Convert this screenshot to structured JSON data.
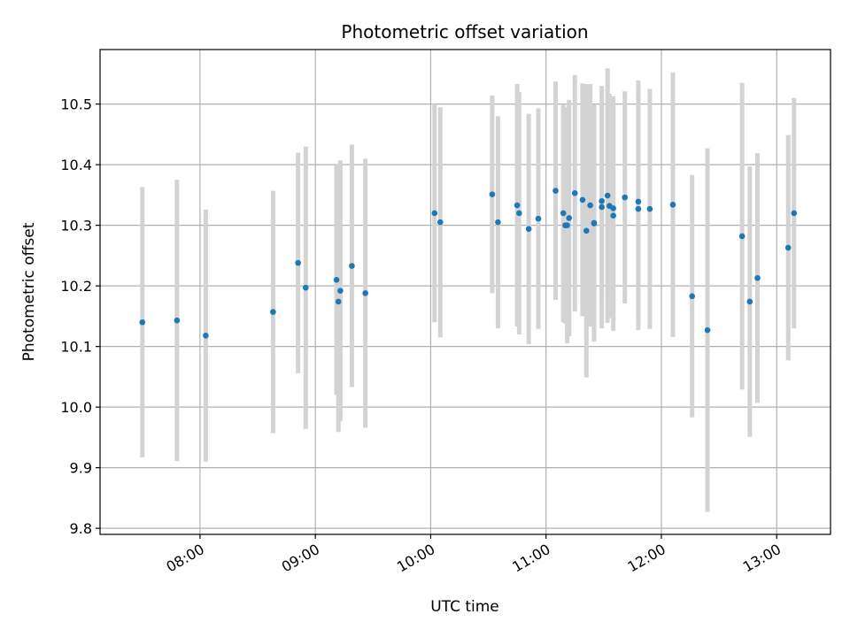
{
  "chart_data": {
    "type": "scatter",
    "title": "Photometric offset variation",
    "xlabel": "UTC time",
    "ylabel": "Photometric offset",
    "x_tick_labels": [
      "08:00",
      "09:00",
      "10:00",
      "11:00",
      "12:00",
      "13:00"
    ],
    "y_tick_labels": [
      "9.8",
      "9.9",
      "10.0",
      "10.1",
      "10.2",
      "10.3",
      "10.4",
      "10.5"
    ],
    "xlim_minutes_utc": [
      428,
      808
    ],
    "ylim": [
      9.79,
      10.59
    ],
    "grid": true,
    "colors": {
      "points": "#1f77b4",
      "errorbars": "#d3d3d3",
      "grid": "#b0b0b0"
    },
    "series": [
      {
        "x": [
          "07:30",
          "07:48",
          "08:03",
          "08:38",
          "08:51",
          "08:55",
          "09:11",
          "09:12",
          "09:13",
          "09:19",
          "09:26",
          "10:02",
          "10:05",
          "10:32",
          "10:35",
          "10:45",
          "10:46",
          "10:51",
          "10:56",
          "11:05",
          "11:09",
          "11:10",
          "11:11",
          "11:12",
          "11:15",
          "11:19",
          "11:21",
          "11:23",
          "11:25",
          "11:25",
          "11:29",
          "11:29",
          "11:32",
          "11:33",
          "11:35",
          "11:35",
          "11:41",
          "11:48",
          "11:48",
          "11:54",
          "12:06",
          "12:16",
          "12:24",
          "12:42",
          "12:46",
          "12:50",
          "13:06",
          "13:09"
        ],
        "y": [
          10.14,
          10.143,
          10.118,
          10.157,
          10.238,
          10.197,
          10.21,
          10.174,
          10.192,
          10.233,
          10.188,
          10.32,
          10.305,
          10.351,
          10.305,
          10.333,
          10.32,
          10.294,
          10.311,
          10.357,
          10.32,
          10.3,
          10.3,
          10.312,
          10.353,
          10.342,
          10.291,
          10.333,
          10.304,
          10.303,
          10.34,
          10.33,
          10.349,
          10.332,
          10.328,
          10.316,
          10.346,
          10.339,
          10.327,
          10.327,
          10.334,
          10.183,
          10.127,
          10.282,
          10.174,
          10.213,
          10.263,
          10.32
        ],
        "error": [
          0.223,
          0.232,
          0.208,
          0.2,
          0.182,
          0.233,
          0.19,
          0.215,
          0.215,
          0.2,
          0.222,
          0.18,
          0.19,
          0.163,
          0.175,
          0.2,
          0.2,
          0.19,
          0.182,
          0.18,
          0.18,
          0.162,
          0.195,
          0.195,
          0.195,
          0.192,
          0.242,
          0.2,
          0.195,
          0.195,
          0.165,
          0.2,
          0.21,
          0.185,
          0.185,
          0.19,
          0.175,
          0.2,
          0.2,
          0.198,
          0.218,
          0.2,
          0.3,
          0.253,
          0.223,
          0.206,
          0.186,
          0.19
        ]
      }
    ]
  }
}
